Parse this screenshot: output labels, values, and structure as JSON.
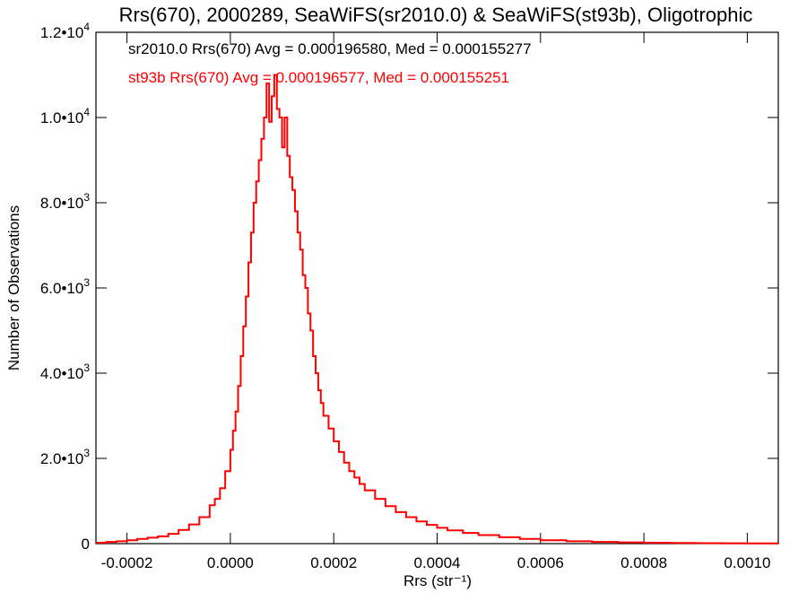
{
  "chart_data": {
    "type": "histogram",
    "title": "Rrs(670), 2000289, SeaWiFS(sr2010.0) & SeaWiFS(st93b), Oligotrophic",
    "xlabel": "Rrs (str⁻¹)",
    "ylabel": "Number of Observations",
    "xlim": [
      -0.00026,
      0.00106
    ],
    "ylim": [
      0,
      12000
    ],
    "grid": false,
    "x_ticks": [
      {
        "value": -0.0002,
        "label": "-0.0002"
      },
      {
        "value": 0.0,
        "label": "0.0000"
      },
      {
        "value": 0.0002,
        "label": "0.0002"
      },
      {
        "value": 0.0004,
        "label": "0.0004"
      },
      {
        "value": 0.0006,
        "label": "0.0006"
      },
      {
        "value": 0.0008,
        "label": "0.0008"
      },
      {
        "value": 0.001,
        "label": "0.0010"
      }
    ],
    "y_ticks": [
      {
        "value": 0,
        "mantissa": "0",
        "exponent": ""
      },
      {
        "value": 2000,
        "mantissa": "2.0•10",
        "exponent": "3"
      },
      {
        "value": 4000,
        "mantissa": "4.0•10",
        "exponent": "3"
      },
      {
        "value": 6000,
        "mantissa": "6.0•10",
        "exponent": "3"
      },
      {
        "value": 8000,
        "mantissa": "8.0•10",
        "exponent": "3"
      },
      {
        "value": 10000,
        "mantissa": "1.0•10",
        "exponent": "4"
      },
      {
        "value": 12000,
        "mantissa": "1.2•10",
        "exponent": "4"
      }
    ],
    "annotations": [
      {
        "text": "sr2010.0 Rrs(670) Avg = 0.000196580, Med = 0.000155277",
        "color": "#000000"
      },
      {
        "text": "st93b Rrs(670) Avg = 0.000196577, Med = 0.000155251",
        "color": "#ff0000"
      }
    ],
    "series": [
      {
        "color": "#ff0000",
        "style": "step",
        "bins": [
          [
            -0.00026,
            20
          ],
          [
            -0.00024,
            40
          ],
          [
            -0.00022,
            55
          ],
          [
            -0.0002,
            80
          ],
          [
            -0.00018,
            110
          ],
          [
            -0.00016,
            140
          ],
          [
            -0.00014,
            170
          ],
          [
            -0.00012,
            230
          ],
          [
            -0.0001,
            320
          ],
          [
            -8e-05,
            450
          ],
          [
            -6e-05,
            620
          ],
          [
            -4e-05,
            900
          ],
          [
            -3e-05,
            1050
          ],
          [
            -2e-05,
            1300
          ],
          [
            -1e-05,
            1700
          ],
          [
            0.0,
            2200
          ],
          [
            5e-06,
            2650
          ],
          [
            1e-05,
            3100
          ],
          [
            1.5e-05,
            3700
          ],
          [
            2e-05,
            4400
          ],
          [
            2.5e-05,
            5100
          ],
          [
            3e-05,
            5800
          ],
          [
            3.5e-05,
            6600
          ],
          [
            4e-05,
            7300
          ],
          [
            4.5e-05,
            8000
          ],
          [
            5e-05,
            8500
          ],
          [
            5.5e-05,
            9000
          ],
          [
            6e-05,
            9500
          ],
          [
            6.5e-05,
            10000
          ],
          [
            7e-05,
            10800
          ],
          [
            7.5e-05,
            9900
          ],
          [
            8e-05,
            10500
          ],
          [
            8.5e-05,
            11000
          ],
          [
            9e-05,
            10200
          ],
          [
            9.5e-05,
            10000
          ],
          [
            0.0001,
            9300
          ],
          [
            0.000105,
            10000
          ],
          [
            0.00011,
            9100
          ],
          [
            0.000115,
            8600
          ],
          [
            0.00012,
            8300
          ],
          [
            0.000125,
            7800
          ],
          [
            0.00013,
            7300
          ],
          [
            0.000135,
            6900
          ],
          [
            0.00014,
            6300
          ],
          [
            0.000145,
            6000
          ],
          [
            0.00015,
            5400
          ],
          [
            0.000155,
            5000
          ],
          [
            0.00016,
            4400
          ],
          [
            0.000165,
            4000
          ],
          [
            0.00017,
            3600
          ],
          [
            0.000175,
            3300
          ],
          [
            0.00018,
            3000
          ],
          [
            0.00019,
            2700
          ],
          [
            0.0002,
            2400
          ],
          [
            0.00021,
            2150
          ],
          [
            0.00022,
            1900
          ],
          [
            0.00023,
            1700
          ],
          [
            0.00024,
            1550
          ],
          [
            0.00025,
            1400
          ],
          [
            0.00026,
            1250
          ],
          [
            0.00028,
            1050
          ],
          [
            0.0003,
            880
          ],
          [
            0.00032,
            740
          ],
          [
            0.00034,
            620
          ],
          [
            0.00036,
            520
          ],
          [
            0.00038,
            440
          ],
          [
            0.0004,
            370
          ],
          [
            0.00042,
            310
          ],
          [
            0.00045,
            250
          ],
          [
            0.00048,
            200
          ],
          [
            0.00052,
            150
          ],
          [
            0.00056,
            110
          ],
          [
            0.0006,
            80
          ],
          [
            0.00065,
            55
          ],
          [
            0.0007,
            40
          ],
          [
            0.00075,
            30
          ],
          [
            0.0008,
            22
          ],
          [
            0.00085,
            16
          ],
          [
            0.0009,
            11
          ],
          [
            0.00095,
            7
          ],
          [
            0.001,
            4
          ],
          [
            0.00106,
            0
          ]
        ]
      }
    ]
  }
}
